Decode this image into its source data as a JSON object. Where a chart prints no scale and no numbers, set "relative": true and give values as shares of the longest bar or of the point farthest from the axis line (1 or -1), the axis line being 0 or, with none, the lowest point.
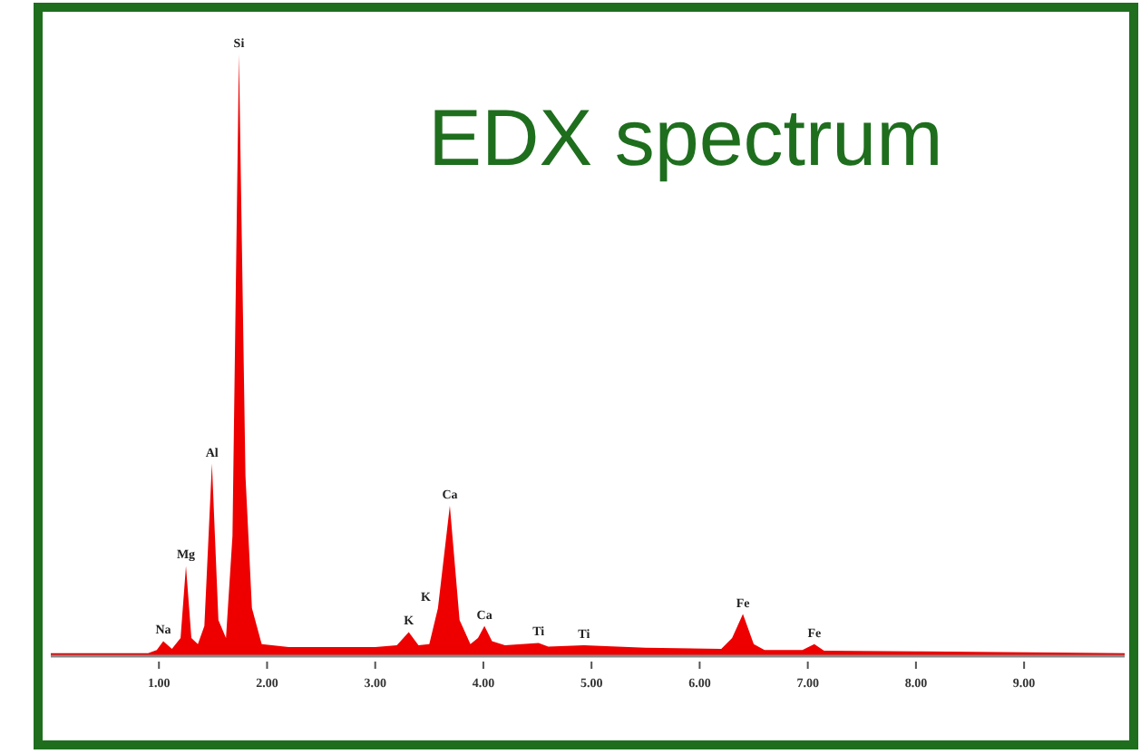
{
  "chart_data": {
    "type": "area",
    "title": "EDX spectrum",
    "relative": true,
    "xlim": [
      0,
      9.93
    ],
    "xticks": [
      {
        "value": 1,
        "label": "1.00"
      },
      {
        "value": 2,
        "label": "2.00"
      },
      {
        "value": 3,
        "label": "3.00"
      },
      {
        "value": 4,
        "label": "4.00"
      },
      {
        "value": 5,
        "label": "5.00"
      },
      {
        "value": 6,
        "label": "6.00"
      },
      {
        "value": 7,
        "label": "7.00"
      },
      {
        "value": 8,
        "label": "8.00"
      },
      {
        "value": 9,
        "label": "9.00"
      }
    ],
    "series": [
      {
        "color": "#ee0000",
        "x": [
          0,
          0.9,
          0.98,
          1.04,
          1.12,
          1.2,
          1.25,
          1.3,
          1.36,
          1.42,
          1.49,
          1.55,
          1.62,
          1.68,
          1.74,
          1.8,
          1.86,
          1.95,
          2.2,
          2.6,
          3.0,
          3.2,
          3.31,
          3.4,
          3.5,
          3.58,
          3.69,
          3.78,
          3.88,
          3.95,
          4.01,
          4.08,
          4.2,
          4.51,
          4.6,
          4.93,
          5.5,
          6.2,
          6.3,
          6.4,
          6.5,
          6.6,
          6.95,
          7.06,
          7.15,
          8,
          9.93
        ],
        "values": [
          0.005,
          0.005,
          0.01,
          0.025,
          0.012,
          0.03,
          0.15,
          0.03,
          0.02,
          0.05,
          0.32,
          0.06,
          0.03,
          0.2,
          1.0,
          0.3,
          0.08,
          0.02,
          0.015,
          0.015,
          0.015,
          0.018,
          0.04,
          0.018,
          0.02,
          0.08,
          0.25,
          0.06,
          0.02,
          0.03,
          0.05,
          0.025,
          0.018,
          0.022,
          0.016,
          0.018,
          0.014,
          0.012,
          0.03,
          0.07,
          0.02,
          0.01,
          0.01,
          0.02,
          0.009,
          0.008,
          0.005
        ]
      }
    ],
    "annotations": [
      {
        "text": "Na",
        "x": 1.04,
        "y": 0.025
      },
      {
        "text": "Mg",
        "x": 1.25,
        "y": 0.15
      },
      {
        "text": "Al",
        "x": 1.49,
        "y": 0.32
      },
      {
        "text": "Si",
        "x": 1.74,
        "y": 1.0
      },
      {
        "text": "K",
        "x": 3.31,
        "y": 0.04
      },
      {
        "text": "K",
        "x": 3.58,
        "y": 0.08
      },
      {
        "text": "Ca",
        "x": 3.69,
        "y": 0.25
      },
      {
        "text": "Ca",
        "x": 4.01,
        "y": 0.05
      },
      {
        "text": "Ti",
        "x": 4.51,
        "y": 0.022
      },
      {
        "text": "Ti",
        "x": 4.93,
        "y": 0.018
      },
      {
        "text": "Fe",
        "x": 6.4,
        "y": 0.07
      },
      {
        "text": "Fe",
        "x": 7.06,
        "y": 0.02
      }
    ]
  }
}
